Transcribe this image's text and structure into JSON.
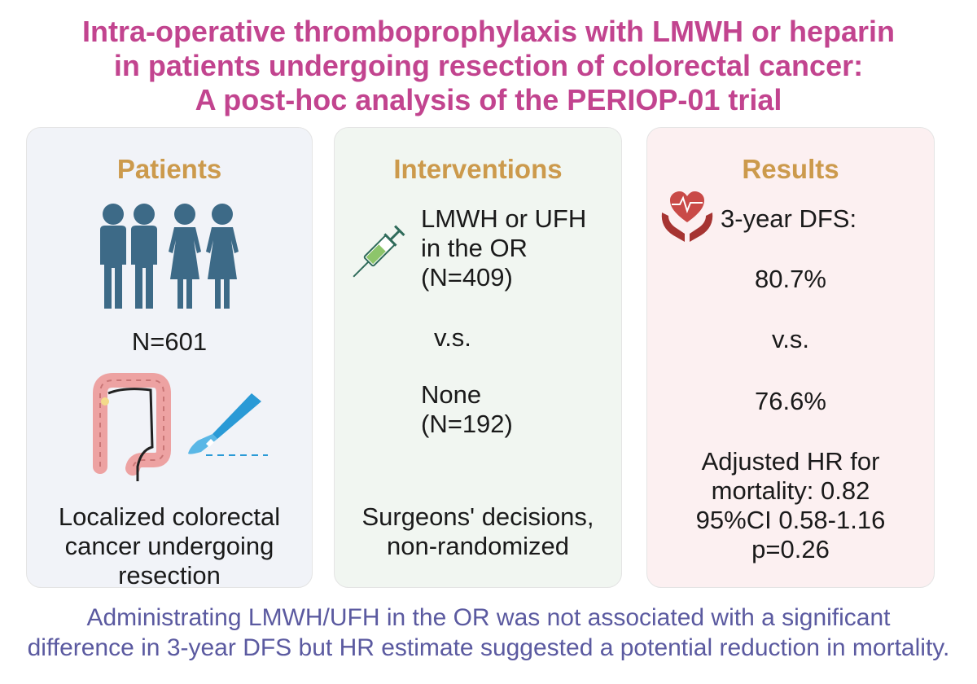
{
  "title": {
    "line1": "Intra-operative thromboprophylaxis with LMWH or heparin",
    "line2": "in patients undergoing resection of colorectal cancer:",
    "line3": "A post-hoc analysis of the PERIOP-01 trial"
  },
  "patients": {
    "heading": "Patients",
    "n": "N=601",
    "desc1": "Localized colorectal",
    "desc2": "cancer undergoing",
    "desc3": "resection"
  },
  "interventions": {
    "heading": "Interventions",
    "arm1_line1": "LMWH or UFH",
    "arm1_line2": "in the OR",
    "arm1_line3": "(N=409)",
    "vs": "v.s.",
    "arm2_line1": "None",
    "arm2_line2": "(N=192)",
    "note1": "Surgeons' decisions,",
    "note2": "non-randomized"
  },
  "results": {
    "heading": "Results",
    "metric": "3-year DFS:",
    "value1": "80.7%",
    "vs": "v.s.",
    "value2": "76.6%",
    "hr1": "Adjusted HR for",
    "hr2": "mortality: 0.82",
    "hr3": "95%CI 0.58-1.16",
    "hr4": "p=0.26"
  },
  "footer": {
    "line1": "Administrating LMWH/UFH in the OR was not associated with a significant",
    "line2": "difference in 3-year DFS but HR estimate suggested a potential reduction in mortality."
  },
  "colors": {
    "title": "#c2448f",
    "heading": "#cc9a4c",
    "footer": "#5b5aa0",
    "people": "#3d6a87",
    "heart": "#c94a47"
  },
  "icons": [
    "people-icon",
    "colon-icon",
    "scalpel-icon",
    "syringe-icon",
    "heart-hands-icon"
  ]
}
